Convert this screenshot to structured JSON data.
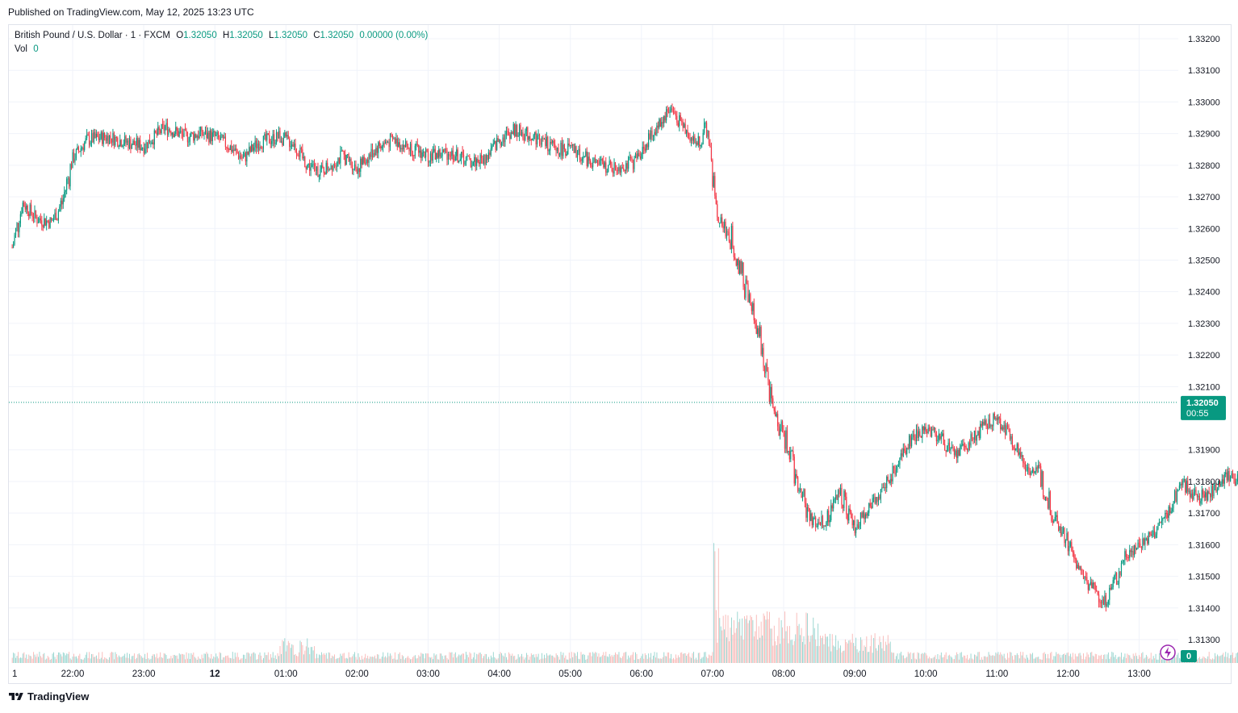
{
  "header": {
    "published": "Published on TradingView.com, May 12, 2025 13:23 UTC"
  },
  "legend": {
    "symbol": "British Pound / U.S. Dollar · 1 · FXCM",
    "o_label": "O",
    "o_value": "1.32050",
    "h_label": "H",
    "h_value": "1.32050",
    "l_label": "L",
    "l_value": "1.32050",
    "c_label": "C",
    "c_value": "1.32050",
    "change": "0.00000 (0.00%)",
    "vol_label": "Vol",
    "vol_value": "0"
  },
  "footer": {
    "brand": "TradingView"
  },
  "colors": {
    "up": "#089981",
    "down": "#f23645",
    "grid": "#f0f3fa",
    "accent": "#089981"
  },
  "chart_data": {
    "type": "candlestick",
    "price_axis": {
      "ticks": [
        "1.33200",
        "1.33100",
        "1.33000",
        "1.32900",
        "1.32800",
        "1.32700",
        "1.32600",
        "1.32500",
        "1.32400",
        "1.32300",
        "1.32200",
        "1.32100",
        "1.31900",
        "1.31800",
        "1.31700",
        "1.31600",
        "1.31500",
        "1.31400",
        "1.31300"
      ],
      "range": [
        1.3127,
        1.3323
      ]
    },
    "time_axis": {
      "ticks": [
        "1",
        "22:00",
        "23:00",
        "12",
        "01:00",
        "02:00",
        "03:00",
        "04:00",
        "05:00",
        "06:00",
        "07:00",
        "08:00",
        "09:00",
        "10:00",
        "11:00",
        "12:00",
        "13:00"
      ]
    },
    "last_price": {
      "value": "1.32050",
      "countdown": "00:55"
    },
    "volume_last": "0",
    "price_path": [
      [
        21.15,
        1.3254
      ],
      [
        21.3,
        1.3268
      ],
      [
        21.5,
        1.3263
      ],
      [
        21.7,
        1.3262
      ],
      [
        21.85,
        1.3268
      ],
      [
        22.0,
        1.3282
      ],
      [
        22.2,
        1.3288
      ],
      [
        22.5,
        1.3289
      ],
      [
        22.8,
        1.3287
      ],
      [
        23.0,
        1.3286
      ],
      [
        23.3,
        1.3292
      ],
      [
        23.6,
        1.3289
      ],
      [
        23.8,
        1.329
      ],
      [
        24.0,
        1.3289
      ],
      [
        24.2,
        1.3286
      ],
      [
        24.4,
        1.3282
      ],
      [
        24.6,
        1.3287
      ],
      [
        24.9,
        1.3289
      ],
      [
        25.1,
        1.3287
      ],
      [
        25.3,
        1.328
      ],
      [
        25.5,
        1.3278
      ],
      [
        25.8,
        1.3283
      ],
      [
        26.0,
        1.3279
      ],
      [
        26.3,
        1.3286
      ],
      [
        26.5,
        1.3288
      ],
      [
        26.8,
        1.3285
      ],
      [
        27.0,
        1.3283
      ],
      [
        27.3,
        1.3284
      ],
      [
        27.6,
        1.3281
      ],
      [
        27.8,
        1.3282
      ],
      [
        28.0,
        1.3288
      ],
      [
        28.2,
        1.3291
      ],
      [
        28.5,
        1.3289
      ],
      [
        28.8,
        1.3285
      ],
      [
        29.0,
        1.3285
      ],
      [
        29.3,
        1.3281
      ],
      [
        29.6,
        1.3279
      ],
      [
        29.9,
        1.3281
      ],
      [
        30.1,
        1.3288
      ],
      [
        30.4,
        1.3298
      ],
      [
        30.6,
        1.3292
      ],
      [
        30.75,
        1.3287
      ],
      [
        30.95,
        1.329
      ],
      [
        31.0,
        1.3275
      ],
      [
        31.1,
        1.3263
      ],
      [
        31.3,
        1.3255
      ],
      [
        31.5,
        1.3238
      ],
      [
        31.7,
        1.3222
      ],
      [
        31.85,
        1.3202
      ],
      [
        32.0,
        1.3195
      ],
      [
        32.2,
        1.318
      ],
      [
        32.4,
        1.3167
      ],
      [
        32.6,
        1.3168
      ],
      [
        32.8,
        1.3178
      ],
      [
        33.0,
        1.3165
      ],
      [
        33.2,
        1.3172
      ],
      [
        33.4,
        1.3178
      ],
      [
        33.6,
        1.3185
      ],
      [
        33.8,
        1.3194
      ],
      [
        34.0,
        1.3197
      ],
      [
        34.2,
        1.3194
      ],
      [
        34.4,
        1.3188
      ],
      [
        34.6,
        1.3192
      ],
      [
        34.8,
        1.3197
      ],
      [
        35.0,
        1.32
      ],
      [
        35.2,
        1.3194
      ],
      [
        35.4,
        1.3185
      ],
      [
        35.6,
        1.3182
      ],
      [
        35.8,
        1.317
      ],
      [
        36.0,
        1.316
      ],
      [
        36.2,
        1.315
      ],
      [
        36.4,
        1.3145
      ],
      [
        36.5,
        1.3141
      ],
      [
        36.7,
        1.315
      ],
      [
        36.8,
        1.3157
      ],
      [
        37.0,
        1.316
      ],
      [
        37.2,
        1.3163
      ],
      [
        37.4,
        1.317
      ],
      [
        37.6,
        1.318
      ],
      [
        37.8,
        1.3175
      ],
      [
        38.0,
        1.3176
      ],
      [
        38.2,
        1.3182
      ],
      [
        38.4,
        1.318
      ],
      [
        38.6,
        1.3188
      ],
      [
        38.8,
        1.3195
      ],
      [
        39.0,
        1.3198
      ],
      [
        39.2,
        1.3193
      ],
      [
        39.4,
        1.3197
      ],
      [
        39.55,
        1.3205
      ]
    ]
  }
}
